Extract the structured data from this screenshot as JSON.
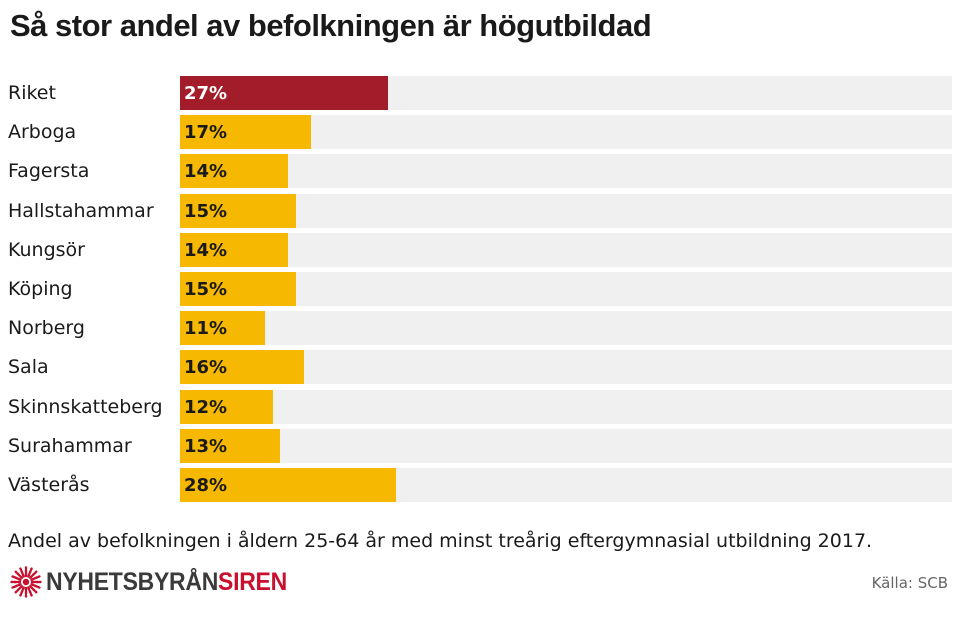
{
  "chart_data": {
    "type": "bar",
    "orientation": "horizontal",
    "title": "Så stor andel av befolkningen är högutbildad",
    "categories": [
      "Riket",
      "Arboga",
      "Fagersta",
      "Hallstahammar",
      "Kungsör",
      "Köping",
      "Norberg",
      "Sala",
      "Skinnskatteberg",
      "Surahammar",
      "Västerås"
    ],
    "values": [
      27,
      17,
      14,
      15,
      14,
      15,
      11,
      16,
      12,
      13,
      28
    ],
    "value_labels": [
      "27%",
      "17%",
      "14%",
      "15%",
      "14%",
      "15%",
      "11%",
      "16%",
      "12%",
      "13%",
      "28%"
    ],
    "unit": "%",
    "xlim": [
      0,
      100
    ],
    "bar_colors": [
      "#a31c2a",
      "#f6b800",
      "#f6b800",
      "#f6b800",
      "#f6b800",
      "#f6b800",
      "#f6b800",
      "#f6b800",
      "#f6b800",
      "#f6b800",
      "#f6b800"
    ],
    "track_color": "#f0f0f0",
    "grid": false,
    "legend": "none"
  },
  "footnote": "Andel av befolkningen i åldern 25-64 år med minst treårig eftergymnasial utbildning 2017.",
  "logo": {
    "part1": "NYHETSBYRÅN",
    "part2": "SIREN",
    "icon": "siren-burst-icon"
  },
  "source": "Källa: SCB"
}
